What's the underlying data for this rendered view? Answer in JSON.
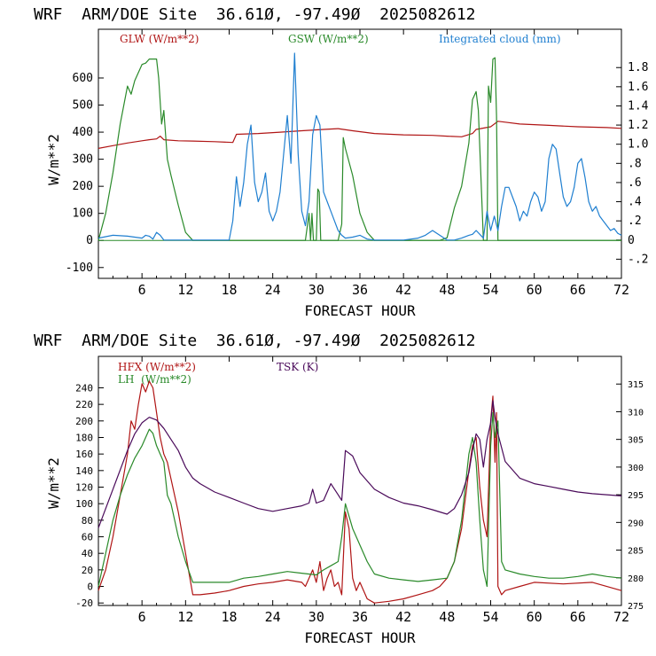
{
  "charts": [
    {
      "header": "WRF  ARM/DOE Site  36.61Ø, -97.49Ø  2025082612",
      "y_left_label": "W/m**2",
      "x_label": "FORECAST HOUR",
      "legend": [
        {
          "text": "GLW (W/m**2)",
          "color": "#b01515"
        },
        {
          "text": "GSW (W/m**2)",
          "color": "#2a8a2a"
        },
        {
          "text": "Integrated cloud (mm)",
          "color": "#1f7fd0"
        }
      ]
    },
    {
      "header": "WRF  ARM/DOE Site  36.61Ø, -97.49Ø  2025082612",
      "y_left_label": "W/m**2",
      "x_label": "FORECAST HOUR",
      "legend": [
        {
          "text": "HFX (W/m**2)",
          "color": "#b01515"
        },
        {
          "text": "LH  (W/m**2)",
          "color": "#2a8a2a"
        },
        {
          "text": "TSK (K)",
          "color": "#4a0a5a"
        }
      ]
    }
  ],
  "chart_data": [
    {
      "type": "line",
      "title": "WRF  ARM/DOE Site  36.61Ø, -97.49Ø  2025082612",
      "xlabel": "FORECAST HOUR",
      "ylabel": "W/m**2",
      "xlim": [
        0,
        72
      ],
      "ylim": [
        -140,
        780
      ],
      "y2lim": [
        -0.4,
        2.2
      ],
      "xticks": [
        6,
        12,
        18,
        24,
        30,
        36,
        42,
        48,
        54,
        60,
        66,
        72
      ],
      "yticks": [
        -100,
        0,
        100,
        200,
        300,
        400,
        500,
        600
      ],
      "y2ticks": [
        -0.2,
        0,
        0.2,
        0.4,
        0.6,
        0.8,
        1.0,
        1.2,
        1.4,
        1.6,
        1.8
      ],
      "y2ticklabels": [
        "-.2",
        "0",
        ".2",
        ".4",
        ".6",
        ".8",
        "1.0",
        "1.2",
        "1.4",
        "1.6",
        "1.8"
      ],
      "series": [
        {
          "name": "GLW (W/m**2)",
          "axis": "left",
          "color": "#b01515",
          "x": [
            0,
            2,
            4,
            6,
            7,
            8,
            8.5,
            9,
            11,
            13,
            16,
            18.5,
            19,
            22,
            25,
            28,
            31,
            33,
            35,
            38,
            42,
            46,
            48,
            50,
            51.5,
            52,
            53,
            54,
            55,
            56,
            58,
            62,
            66,
            70,
            72
          ],
          "y": [
            340,
            350,
            360,
            368,
            372,
            375,
            385,
            372,
            368,
            367,
            365,
            362,
            392,
            395,
            400,
            405,
            410,
            413,
            405,
            395,
            390,
            388,
            385,
            383,
            395,
            410,
            415,
            420,
            440,
            437,
            430,
            425,
            420,
            417,
            414
          ]
        },
        {
          "name": "GSW (W/m**2)",
          "axis": "left",
          "color": "#2a8a2a",
          "x": [
            0,
            1,
            2,
            3,
            4,
            4.5,
            5,
            6,
            6.5,
            7,
            8,
            8.3,
            8.7,
            9,
            9.5,
            10,
            11,
            12,
            13,
            18,
            24,
            28.5,
            29,
            29.2,
            29.4,
            29.6,
            30,
            30.2,
            30.4,
            30.6,
            31,
            32,
            33,
            33.5,
            33.7,
            34,
            35,
            36,
            37,
            38,
            45,
            47,
            48,
            49,
            50,
            51,
            51.5,
            52,
            52.3,
            53,
            53.5,
            53.7,
            54,
            54.3,
            54.6,
            54.8,
            55,
            55.5,
            56,
            58,
            72
          ],
          "y": [
            0,
            100,
            250,
            430,
            570,
            540,
            590,
            650,
            655,
            670,
            670,
            600,
            430,
            480,
            300,
            240,
            130,
            30,
            0,
            0,
            0,
            0,
            100,
            0,
            100,
            0,
            0,
            190,
            180,
            0,
            0,
            0,
            0,
            60,
            380,
            340,
            240,
            100,
            30,
            0,
            0,
            0,
            10,
            120,
            200,
            360,
            520,
            550,
            480,
            0,
            0,
            570,
            510,
            670,
            675,
            460,
            0,
            0,
            0,
            0,
            0
          ]
        },
        {
          "name": "Integrated cloud (mm)",
          "axis": "right",
          "color": "#1f7fd0",
          "x": [
            0,
            2,
            4,
            6,
            6.5,
            7,
            7.5,
            8,
            8.5,
            9,
            14,
            18,
            18.5,
            19,
            19.5,
            20,
            20.5,
            21,
            21.5,
            22,
            22.5,
            23,
            23.5,
            24,
            24.5,
            25,
            25.5,
            26,
            26.5,
            27,
            27.5,
            28,
            28.5,
            29,
            29.5,
            30,
            30.5,
            31,
            31.5,
            32,
            32.5,
            33,
            33.5,
            34,
            35,
            36,
            37,
            38,
            40,
            42,
            44,
            45,
            46,
            47,
            48,
            49,
            50,
            51,
            51.5,
            52,
            53,
            53.5,
            54,
            54.5,
            55,
            55.5,
            56,
            56.5,
            57,
            57.5,
            58,
            58.5,
            59,
            59.5,
            60,
            60.5,
            61,
            61.5,
            62,
            62.5,
            63,
            63.5,
            64,
            64.5,
            65,
            65.5,
            66,
            66.5,
            67,
            67.5,
            68,
            68.5,
            69,
            69.5,
            70,
            70.5,
            71,
            71.5,
            72
          ],
          "y": [
            0.02,
            0.05,
            0.04,
            0.02,
            0.05,
            0.04,
            0.01,
            0.08,
            0.05,
            0.0,
            0.0,
            0.0,
            0.2,
            0.66,
            0.35,
            0.6,
            1.0,
            1.2,
            0.6,
            0.4,
            0.5,
            0.7,
            0.3,
            0.2,
            0.3,
            0.5,
            0.9,
            1.3,
            0.8,
            1.95,
            0.9,
            0.3,
            0.15,
            0.4,
            1.1,
            1.3,
            1.2,
            0.5,
            0.4,
            0.3,
            0.2,
            0.1,
            0.05,
            0.02,
            0.03,
            0.05,
            0.01,
            0.0,
            0.0,
            0.0,
            0.02,
            0.05,
            0.1,
            0.05,
            0.0,
            0.0,
            0.02,
            0.05,
            0.06,
            0.1,
            0.02,
            0.3,
            0.1,
            0.25,
            0.1,
            0.35,
            0.55,
            0.55,
            0.45,
            0.35,
            0.2,
            0.3,
            0.25,
            0.4,
            0.5,
            0.45,
            0.3,
            0.4,
            0.85,
            1.0,
            0.95,
            0.7,
            0.45,
            0.35,
            0.4,
            0.55,
            0.8,
            0.85,
            0.65,
            0.4,
            0.3,
            0.35,
            0.25,
            0.2,
            0.15,
            0.1,
            0.12,
            0.07,
            0.05
          ]
        }
      ]
    },
    {
      "type": "line",
      "title": "WRF  ARM/DOE Site  36.61Ø, -97.49Ø  2025082612",
      "xlabel": "FORECAST HOUR",
      "ylabel": "W/m**2",
      "xlim": [
        0,
        72
      ],
      "ylim": [
        -23,
        278
      ],
      "y2lim": [
        275,
        320
      ],
      "xticks": [
        6,
        12,
        18,
        24,
        30,
        36,
        42,
        48,
        54,
        60,
        66,
        72
      ],
      "yticks": [
        -20,
        0,
        20,
        40,
        60,
        80,
        100,
        120,
        140,
        160,
        180,
        200,
        220,
        240
      ],
      "y2ticks": [
        275,
        280,
        285,
        290,
        295,
        300,
        305,
        310,
        315
      ],
      "series": [
        {
          "name": "HFX (W/m**2)",
          "axis": "left",
          "color": "#b01515",
          "x": [
            0,
            1,
            2,
            3,
            4,
            4.5,
            5,
            5.5,
            6,
            6.5,
            7,
            7.5,
            8,
            8.5,
            9,
            9.5,
            10,
            11,
            12,
            13,
            14,
            16,
            18,
            20,
            22,
            24,
            26,
            28,
            28.5,
            29,
            29.5,
            30,
            30.5,
            31,
            31.5,
            32,
            32.5,
            33,
            33.5,
            34,
            34.5,
            35,
            35.5,
            36,
            37,
            38,
            40,
            42,
            44,
            46,
            47,
            48,
            49,
            50,
            51,
            51.5,
            52,
            52.5,
            53,
            53.5,
            54,
            54.3,
            54.6,
            54.8,
            55,
            55.5,
            56,
            58,
            60,
            64,
            68,
            72
          ],
          "y": [
            -5,
            20,
            60,
            110,
            160,
            200,
            190,
            220,
            245,
            235,
            248,
            240,
            210,
            180,
            160,
            150,
            130,
            90,
            40,
            -10,
            -10,
            -8,
            -5,
            0,
            3,
            5,
            8,
            5,
            0,
            10,
            20,
            5,
            30,
            -5,
            10,
            20,
            0,
            5,
            -10,
            90,
            70,
            10,
            -5,
            5,
            -15,
            -20,
            -18,
            -15,
            -10,
            -5,
            0,
            10,
            30,
            70,
            140,
            170,
            180,
            120,
            80,
            60,
            200,
            230,
            150,
            210,
            0,
            -10,
            -5,
            0,
            5,
            3,
            5,
            -5
          ]
        },
        {
          "name": "LH  (W/m**2)",
          "axis": "left",
          "color": "#2a8a2a",
          "x": [
            0,
            1,
            2,
            3,
            4,
            5,
            6,
            6.5,
            7,
            7.5,
            8,
            8.5,
            9,
            9.5,
            10,
            10.5,
            11,
            12,
            13,
            14,
            16,
            18,
            20,
            22,
            24,
            26,
            28,
            30,
            31,
            32,
            33,
            33.5,
            34,
            35,
            36,
            37,
            38,
            40,
            42,
            44,
            46,
            48,
            49,
            50,
            50.5,
            51,
            51.5,
            52,
            52.5,
            53,
            53.5,
            54,
            54.3,
            54.6,
            55,
            55.5,
            56,
            58,
            60,
            62,
            64,
            66,
            68,
            70,
            72
          ],
          "y": [
            0,
            40,
            80,
            110,
            135,
            155,
            170,
            180,
            190,
            185,
            170,
            160,
            150,
            110,
            100,
            80,
            60,
            30,
            5,
            5,
            5,
            5,
            10,
            12,
            15,
            18,
            16,
            14,
            20,
            25,
            30,
            60,
            100,
            70,
            50,
            30,
            15,
            10,
            8,
            6,
            8,
            10,
            30,
            80,
            120,
            160,
            180,
            150,
            80,
            20,
            0,
            170,
            210,
            180,
            200,
            30,
            20,
            15,
            12,
            10,
            10,
            12,
            15,
            12,
            10
          ]
        },
        {
          "name": "TSK (K)",
          "axis": "right",
          "color": "#4a0a5a",
          "x": [
            0,
            2,
            4,
            5,
            6,
            7,
            8,
            9,
            10,
            11,
            12,
            13,
            14,
            16,
            18,
            20,
            22,
            24,
            26,
            28,
            29,
            29.5,
            30,
            31,
            32,
            33,
            33.5,
            34,
            35,
            36,
            38,
            40,
            42,
            44,
            46,
            48,
            49,
            50,
            51,
            51.5,
            52,
            52.5,
            53,
            53.5,
            54,
            54.3,
            54.6,
            55,
            56,
            58,
            60,
            62,
            64,
            66,
            68,
            70,
            72
          ],
          "y": [
            289,
            296,
            303,
            306,
            308,
            309,
            308.5,
            307,
            305,
            303,
            300,
            298,
            297,
            295.5,
            294.5,
            293.5,
            292.5,
            292,
            292.5,
            293,
            293.5,
            296,
            293.5,
            294,
            297,
            295,
            294,
            303,
            302,
            299,
            296,
            294.5,
            293.5,
            293,
            292.3,
            291.5,
            292.5,
            295,
            299,
            303,
            306,
            305,
            300,
            305,
            308,
            312,
            309,
            306,
            301,
            298,
            297,
            296.5,
            296,
            295.5,
            295.2,
            295,
            294.8
          ]
        }
      ]
    }
  ]
}
